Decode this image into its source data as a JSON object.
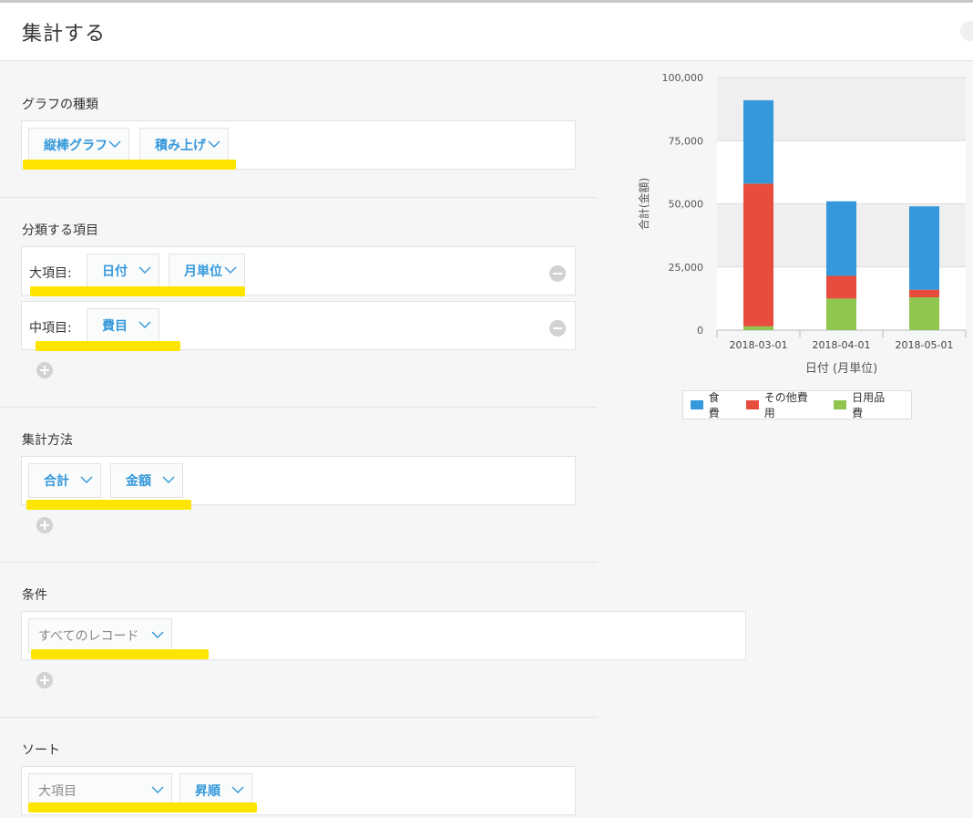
{
  "page": {
    "title": "集計する"
  },
  "graph_type": {
    "label": "グラフの種類",
    "chart_kind": "縦棒グラフ",
    "stacking": "積み上げ"
  },
  "classify": {
    "label": "分類する項目",
    "major_label": "大項目:",
    "major_field": "日付",
    "major_unit": "月単位",
    "minor_label": "中項目:",
    "minor_field": "費目"
  },
  "aggregate": {
    "label": "集計方法",
    "func": "合計",
    "field": "金額"
  },
  "condition": {
    "label": "条件",
    "value": "すべてのレコード"
  },
  "sort": {
    "label": "ソート",
    "key": "大項目",
    "order": "昇順"
  },
  "colors": {
    "accent": "#3498db",
    "highlight": "#fde500",
    "food": "#3498db",
    "other": "#e74c3c",
    "daily": "#8ec64f"
  },
  "chart_data": {
    "type": "bar",
    "stacked": true,
    "categories": [
      "2018-03-01",
      "2018-04-01",
      "2018-05-01"
    ],
    "series": [
      {
        "name": "日用品費",
        "color": "#8ec64f",
        "values": [
          1500,
          12500,
          13000
        ]
      },
      {
        "name": "その他費用",
        "color": "#e74c3c",
        "values": [
          56500,
          9000,
          3000
        ]
      },
      {
        "name": "食費",
        "color": "#3498db",
        "values": [
          33000,
          29500,
          33000
        ]
      }
    ],
    "legend_order": [
      "食費",
      "その他費用",
      "日用品費"
    ],
    "xlabel": "日付 (月単位)",
    "ylabel": "合計(金額)",
    "yticks": [
      "0",
      "25,000",
      "50,000",
      "75,000",
      "100,000"
    ],
    "ytick_values": [
      0,
      25000,
      50000,
      75000,
      100000
    ],
    "ylim": [
      0,
      100000
    ],
    "grid": true,
    "legend_position": "bottom"
  }
}
